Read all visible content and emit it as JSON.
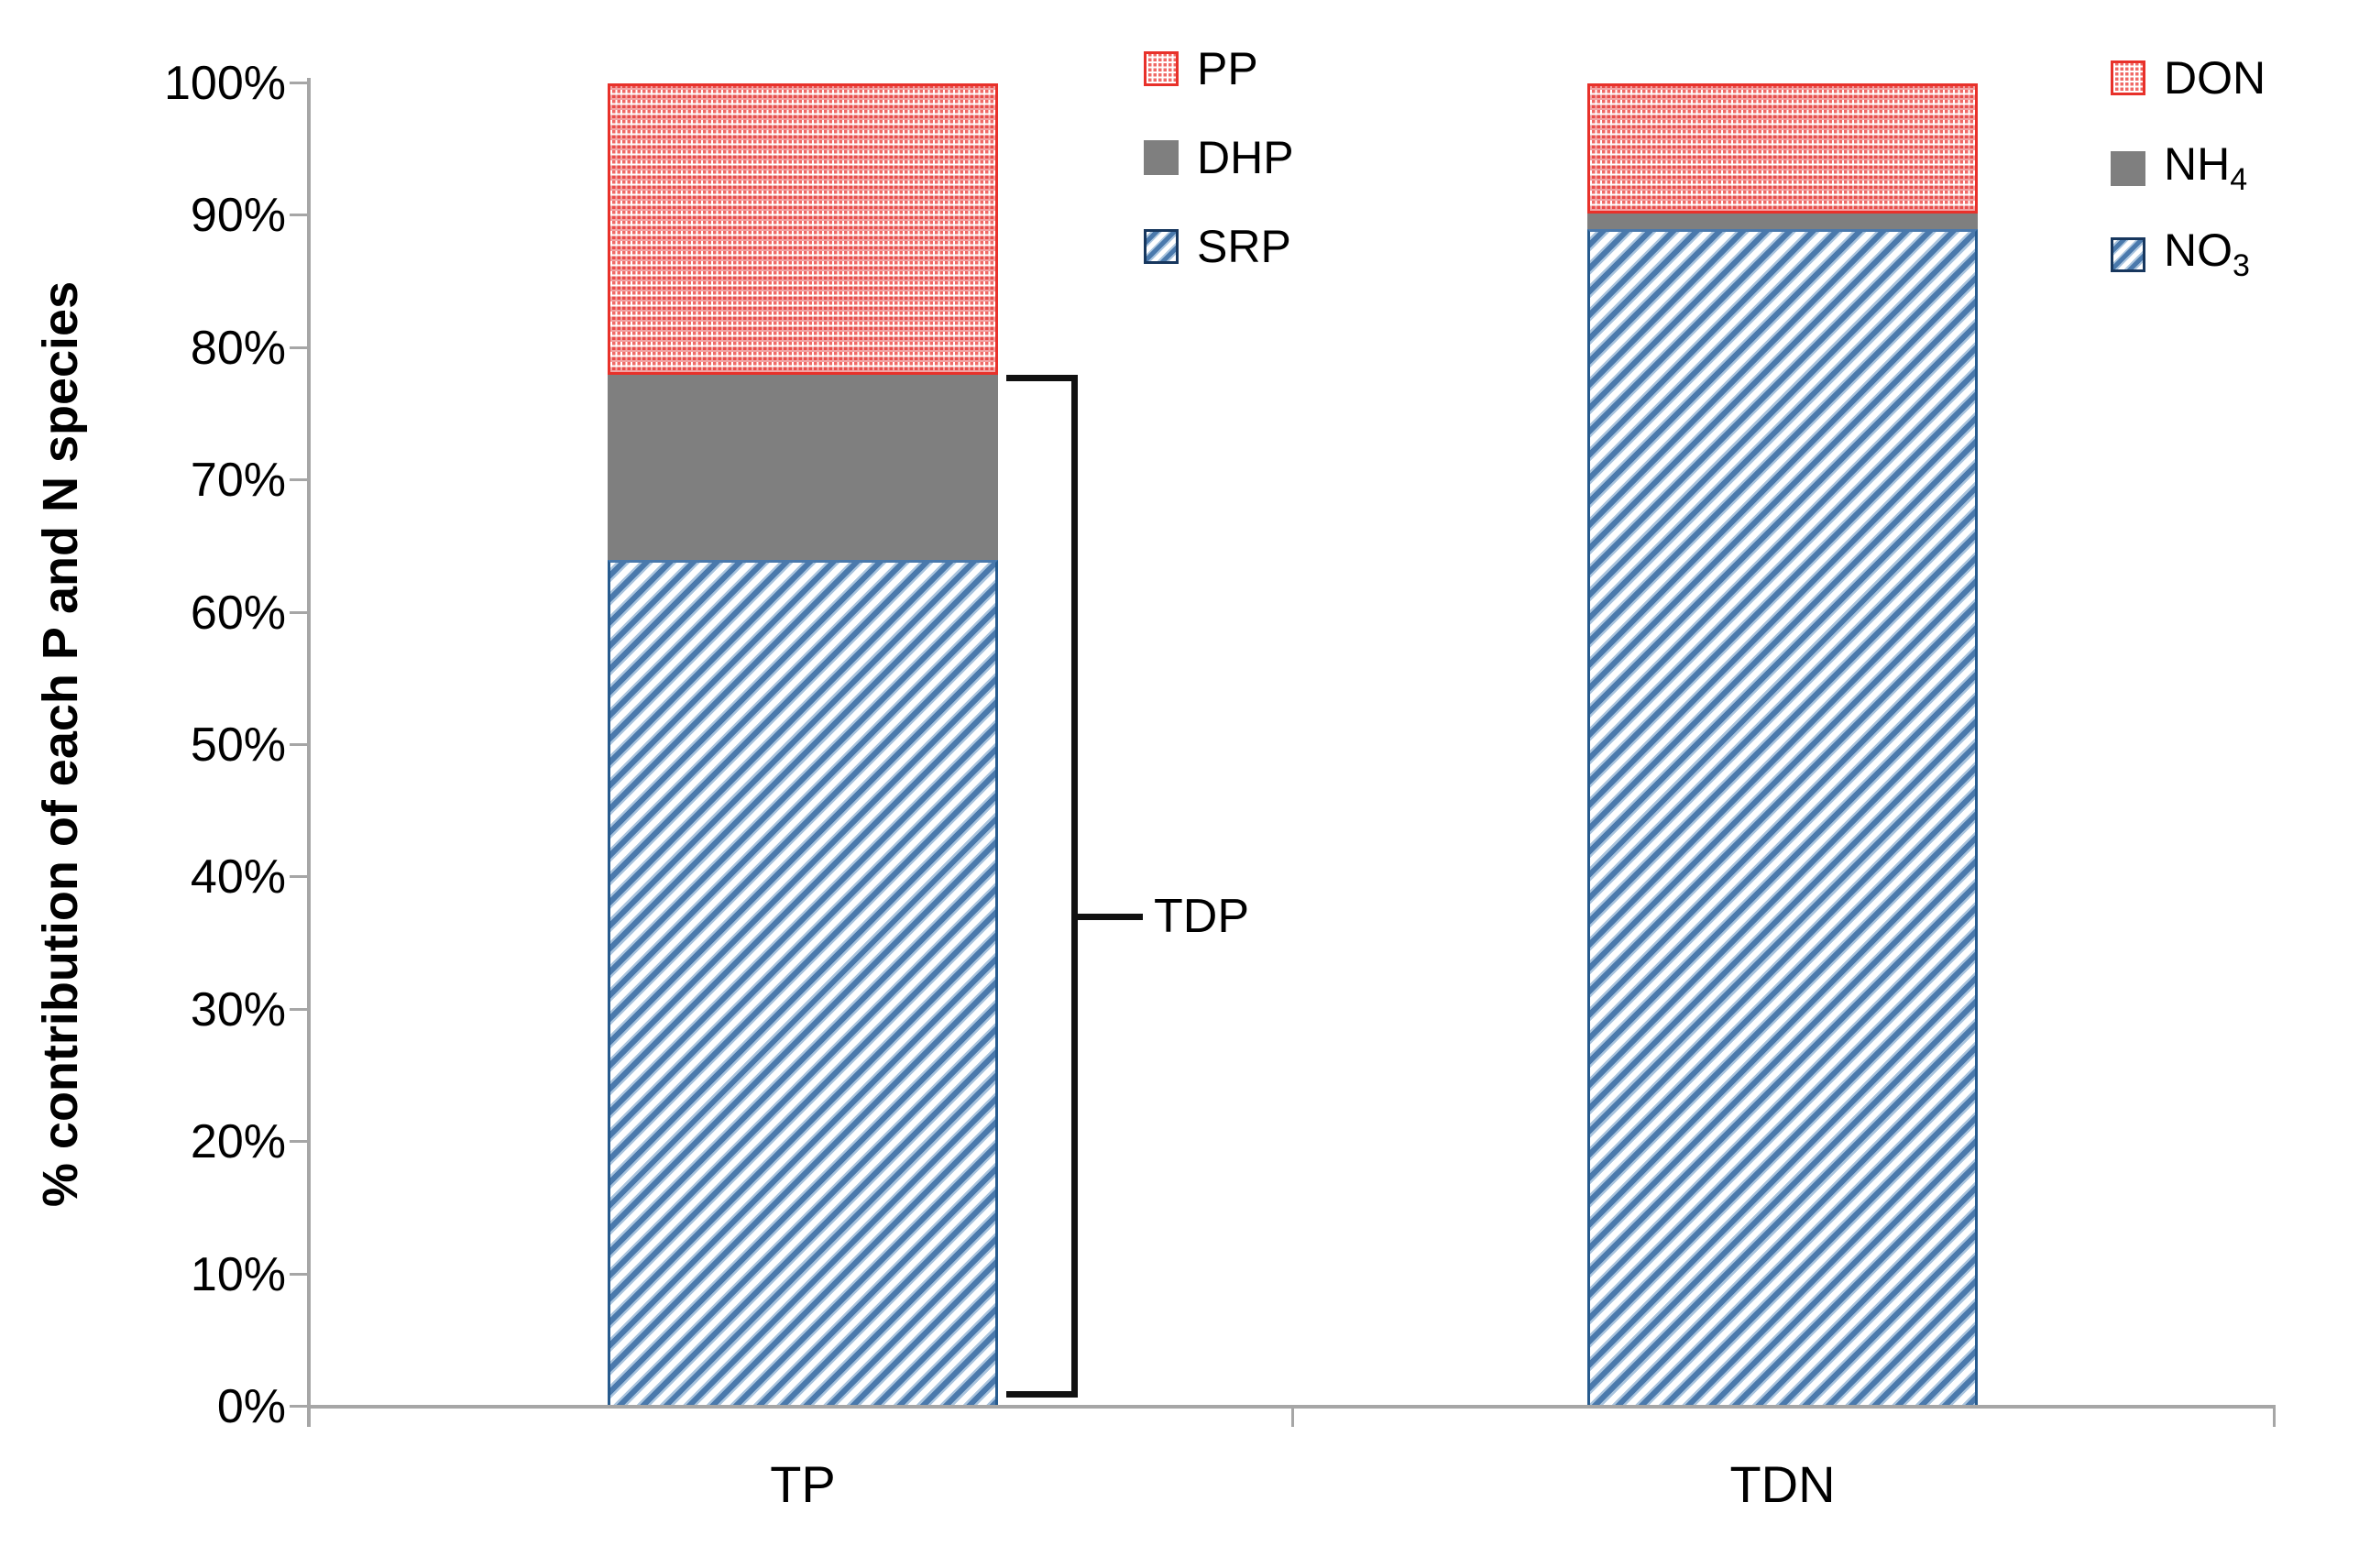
{
  "chart_data": {
    "type": "bar",
    "subtype": "100%-stacked-column",
    "title": "",
    "xlabel": "",
    "ylabel": "% contribution of each P and N species",
    "ylim": [
      0,
      100
    ],
    "ytick_step": 10,
    "ytick_labels": [
      "0%",
      "10%",
      "20%",
      "30%",
      "40%",
      "50%",
      "60%",
      "70%",
      "80%",
      "90%",
      "100%"
    ],
    "grid": false,
    "categories": [
      "TP",
      "TDN"
    ],
    "bars": [
      {
        "category": "TP",
        "stack": [
          {
            "label": "SRP",
            "value": 64,
            "pattern": "blue-hatch"
          },
          {
            "label": "DHP",
            "value": 14,
            "pattern": "gray-solid"
          },
          {
            "label": "PP",
            "value": 22,
            "pattern": "red-dots"
          }
        ]
      },
      {
        "category": "TDN",
        "stack": [
          {
            "label": "NO3",
            "value": 89,
            "pattern": "blue-hatch"
          },
          {
            "label": "NH4",
            "value": 1.2,
            "pattern": "gray-solid"
          },
          {
            "label": "DON",
            "value": 9.8,
            "pattern": "red-dots"
          }
        ]
      }
    ],
    "annotation": {
      "label": "TDP",
      "bar": "TP",
      "span_percent": [
        0,
        78
      ]
    },
    "colors": {
      "red_pattern": "#e8312a",
      "gray_solid": "#7f7f7f",
      "blue_hatch": "#4a79ac",
      "blue_border": "#275b8e",
      "axis": "#a6a6a6",
      "text": "#000000",
      "bracket": "#111111"
    },
    "legend_position": "top"
  },
  "legends": {
    "left": {
      "items": [
        {
          "label": "PP",
          "sub": "",
          "swatch": "red-dots"
        },
        {
          "label": "DHP",
          "sub": "",
          "swatch": "gray-solid"
        },
        {
          "label": "SRP",
          "sub": "",
          "swatch": "blue-hatch"
        }
      ]
    },
    "right": {
      "items": [
        {
          "label": "DON",
          "sub": "",
          "swatch": "red-dots"
        },
        {
          "label": "NH",
          "sub": "4",
          "swatch": "gray-solid"
        },
        {
          "label": "NO",
          "sub": "3",
          "swatch": "blue-hatch"
        }
      ]
    }
  }
}
